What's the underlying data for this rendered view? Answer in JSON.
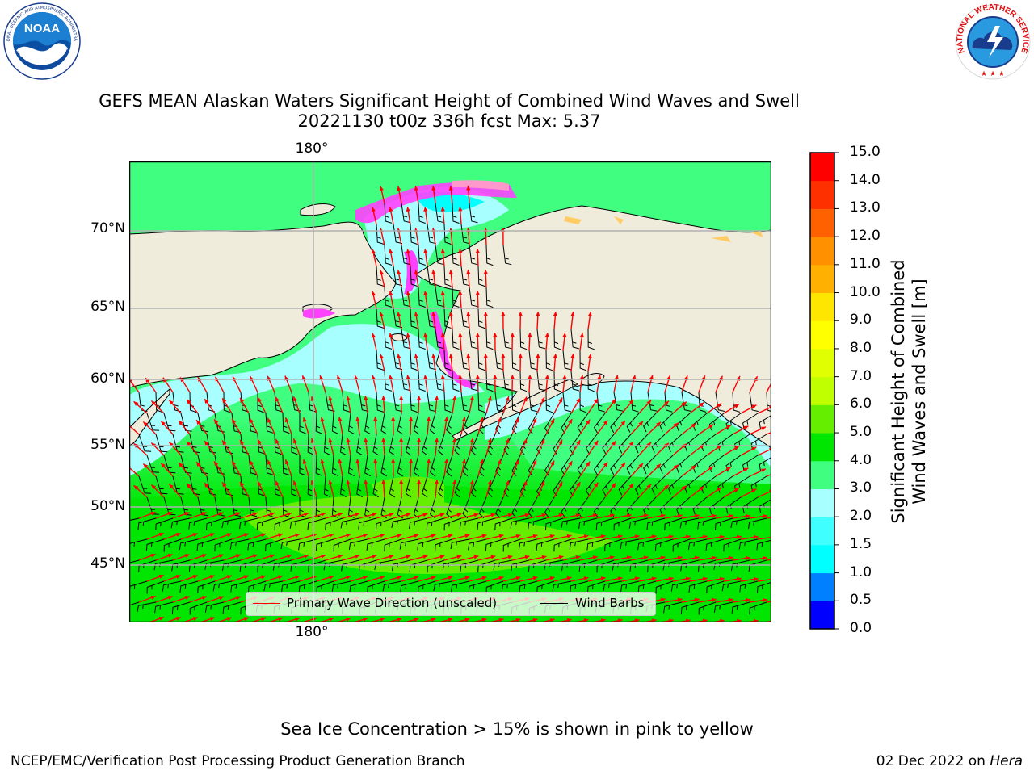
{
  "header": {
    "noaa_logo_text": "NOAA",
    "noaa_ring_text": "NATIONAL OCEANIC AND ATMOSPHERIC ADMINISTRATION",
    "noaa_ring_bottom": "U.S. DEPARTMENT OF COMMERCE",
    "nws_ring_text": "NATIONAL WEATHER SERVICE"
  },
  "chart_data": {
    "type": "heatmap",
    "title": "GEFS MEAN Alaskan Waters Significant Height of Combined Wind Waves and Swell",
    "subtitle": "20221130 t00z 336h fcst   Max: 5.37",
    "lon_labels_top": [
      "180°"
    ],
    "lon_labels_bottom": [
      "180°"
    ],
    "lat_labels": [
      "70°N",
      "65°N",
      "60°N",
      "55°N",
      "50°N",
      "45°N"
    ],
    "colorbar": {
      "label": "Significant Height of Combined Wind Waves and Swell [m]",
      "label_line1": "Significant Height of Combined",
      "label_line2": "Wind Waves and Swell [m]",
      "ticks": [
        "15.0",
        "14.0",
        "13.0",
        "12.0",
        "11.0",
        "10.0",
        "9.0",
        "8.0",
        "7.0",
        "6.0",
        "5.0",
        "4.0",
        "3.0",
        "2.0",
        "1.5",
        "1.0",
        "0.5",
        "0.0"
      ],
      "bins": [
        {
          "from": 0.0,
          "to": 0.5,
          "color": "#0000ff"
        },
        {
          "from": 0.5,
          "to": 1.0,
          "color": "#0080ff"
        },
        {
          "from": 1.0,
          "to": 1.5,
          "color": "#00ffff"
        },
        {
          "from": 1.5,
          "to": 2.0,
          "color": "#40ffff"
        },
        {
          "from": 2.0,
          "to": 3.0,
          "color": "#a8ffff"
        },
        {
          "from": 3.0,
          "to": 4.0,
          "color": "#40ff80"
        },
        {
          "from": 4.0,
          "to": 5.0,
          "color": "#00e600"
        },
        {
          "from": 5.0,
          "to": 6.0,
          "color": "#66ee00"
        },
        {
          "from": 6.0,
          "to": 7.0,
          "color": "#c0ff00"
        },
        {
          "from": 7.0,
          "to": 8.0,
          "color": "#e0ff00"
        },
        {
          "from": 8.0,
          "to": 9.0,
          "color": "#ffff00"
        },
        {
          "from": 9.0,
          "to": 10.0,
          "color": "#ffe600"
        },
        {
          "from": 10.0,
          "to": 11.0,
          "color": "#ffb000"
        },
        {
          "from": 11.0,
          "to": 12.0,
          "color": "#ff9000"
        },
        {
          "from": 12.0,
          "to": 13.0,
          "color": "#ff6000"
        },
        {
          "from": 13.0,
          "to": 14.0,
          "color": "#ff3000"
        },
        {
          "from": 14.0,
          "to": 15.0,
          "color": "#ff0000"
        }
      ]
    },
    "max_value": 5.37,
    "legend": {
      "placement": "bottom-center",
      "items": [
        {
          "label": "Primary Wave Direction (unscaled)",
          "color": "#ff0000"
        },
        {
          "label": "Wind Barbs",
          "color": "#000000"
        }
      ]
    },
    "land_color": "#efecdc",
    "ice_colors": [
      "#ff40ff",
      "#ff99cc",
      "#ffcc66",
      "#ffff66"
    ]
  },
  "footer": {
    "note": "Sea Ice Concentration > 15% is shown in pink to yellow",
    "left": "NCEP/EMC/Verification Post Processing Product Generation Branch",
    "right_prefix": "02 Dec 2022 on ",
    "right_host": "Hera"
  }
}
